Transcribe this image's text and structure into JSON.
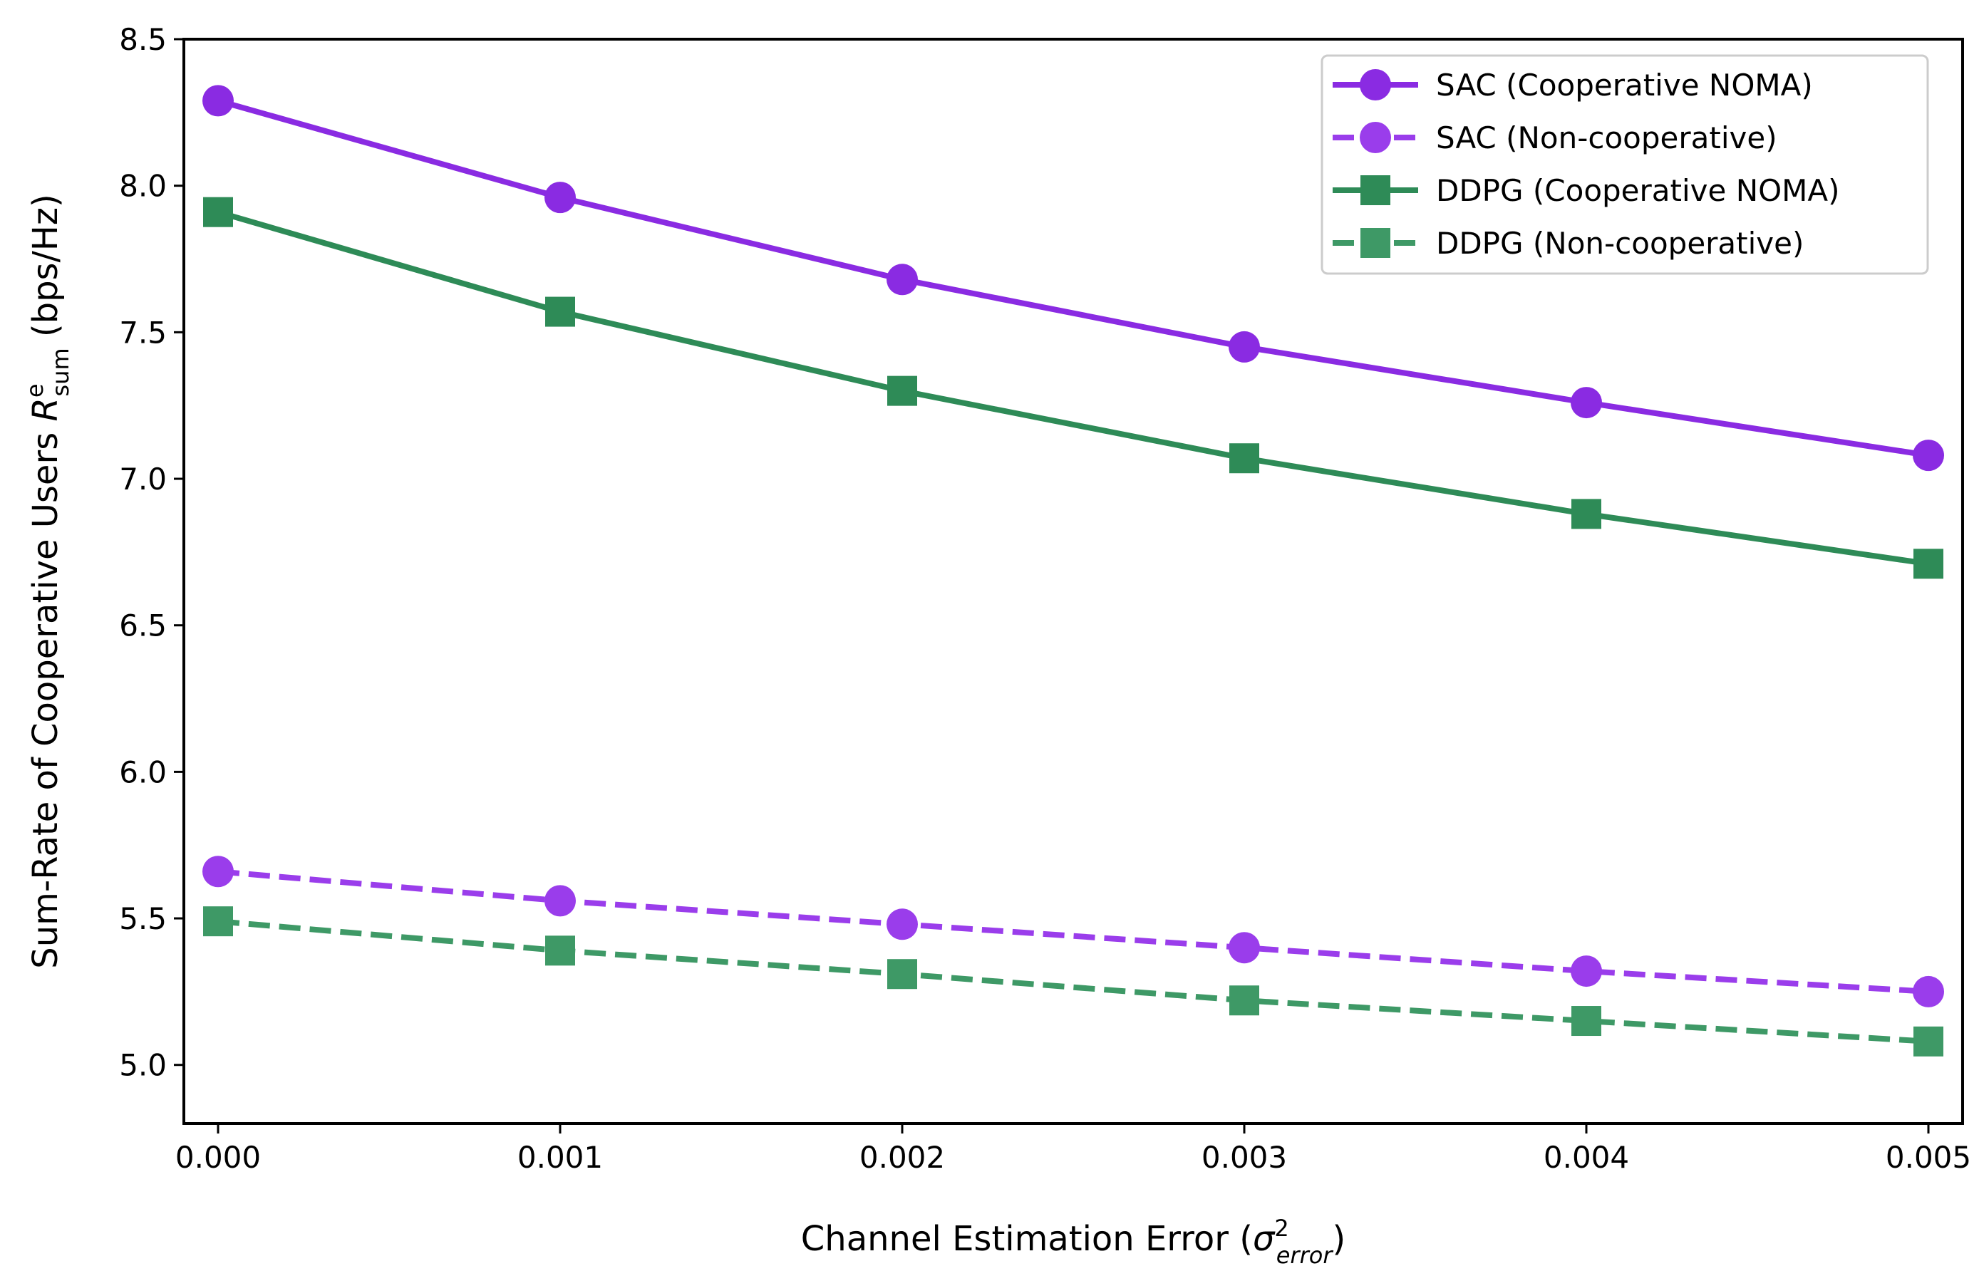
{
  "chart_data": {
    "type": "line",
    "title": "",
    "xlabel": {
      "prefix": "Channel Estimation Error (",
      "symbol": "σ",
      "superscript": "2",
      "subscript": "error",
      "suffix": ")"
    },
    "ylabel": {
      "prefix": "Sum-Rate of Cooperative Users ",
      "symbol": "R",
      "superscript": "e",
      "subscript": "sum",
      "suffix": " (bps/Hz)"
    },
    "x": [
      0.0,
      0.001,
      0.002,
      0.003,
      0.004,
      0.005
    ],
    "xticks": [
      "0.000",
      "0.001",
      "0.002",
      "0.003",
      "0.004",
      "0.005"
    ],
    "yticks": [
      "5.0",
      "5.5",
      "6.0",
      "6.5",
      "7.0",
      "7.5",
      "8.0",
      "8.5"
    ],
    "xlim": [
      -0.0001,
      0.0051
    ],
    "ylim": [
      4.8,
      8.5
    ],
    "grid": false,
    "legend_position": "top-right",
    "series": [
      {
        "name": "SAC (Cooperative NOMA)",
        "values": [
          8.29,
          7.96,
          7.68,
          7.45,
          7.26,
          7.08
        ],
        "color": "#8A2BE2",
        "linestyle": "solid",
        "marker": "circle"
      },
      {
        "name": "SAC (Non-cooperative)",
        "values": [
          5.66,
          5.56,
          5.48,
          5.4,
          5.32,
          5.25
        ],
        "color": "#9A3DEB",
        "linestyle": "dashed",
        "marker": "circle"
      },
      {
        "name": "DDPG (Cooperative NOMA)",
        "values": [
          7.91,
          7.57,
          7.3,
          7.07,
          6.88,
          6.71
        ],
        "color": "#2E8B57",
        "linestyle": "solid",
        "marker": "square"
      },
      {
        "name": "DDPG (Non-cooperative)",
        "values": [
          5.49,
          5.39,
          5.31,
          5.22,
          5.15,
          5.08
        ],
        "color": "#3E9966",
        "linestyle": "dashed",
        "marker": "square"
      }
    ]
  }
}
